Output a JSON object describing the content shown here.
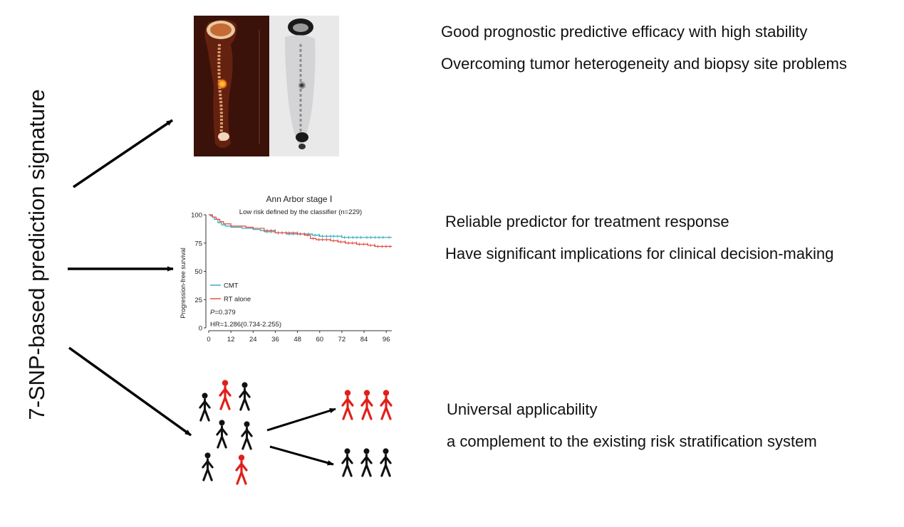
{
  "title": "7-SNP-based prediction signature",
  "benefits": [
    {
      "lines": [
        "Good prognostic predictive efficacy with high stability",
        "Overcoming tumor heterogeneity and biopsy site problems"
      ]
    },
    {
      "lines": [
        "Reliable predictor for treatment response",
        "Have significant implications for clinical decision-making"
      ]
    },
    {
      "lines": [
        "Universal applicability",
        "a complement to the existing risk stratification system"
      ]
    }
  ],
  "pet_image": {
    "icon": "pet-ct-scan"
  },
  "people": {
    "icon": "person-figure",
    "colors": {
      "high": "#e0201b",
      "low": "#111111"
    }
  },
  "chart_data": {
    "type": "line",
    "title": "Ann Arbor stage Ⅰ",
    "subtitle": "Low risk defined by the classifier (n=229)",
    "xlabel": "",
    "ylabel": "Progression-free survival",
    "xlim": [
      0,
      99
    ],
    "ylim": [
      0,
      100
    ],
    "xticks": [
      0,
      12,
      24,
      36,
      48,
      60,
      72,
      84,
      96
    ],
    "yticks": [
      0,
      25,
      50,
      75,
      100
    ],
    "grid": false,
    "legend_position": "bottom-left",
    "series": [
      {
        "name": "CMT",
        "color": "#2aa7b8",
        "x": [
          0,
          1,
          2,
          3,
          5,
          7,
          9,
          12,
          18,
          24,
          28,
          30,
          36,
          42,
          48,
          56,
          60,
          66,
          72,
          84,
          96,
          99
        ],
        "y": [
          100,
          99,
          98,
          96,
          93,
          91,
          90,
          89,
          88,
          87,
          86,
          85,
          84,
          83,
          83,
          82,
          81,
          81,
          80,
          80,
          80,
          80
        ]
      },
      {
        "name": "RT alone",
        "color": "#e0473d",
        "x": [
          0,
          2,
          4,
          6,
          8,
          12,
          20,
          24,
          30,
          36,
          42,
          48,
          52,
          55,
          58,
          60,
          66,
          70,
          74,
          80,
          86,
          90,
          99
        ],
        "y": [
          100,
          98,
          96,
          94,
          92,
          90,
          89,
          88,
          86,
          84,
          84,
          83,
          82,
          79,
          78,
          78,
          77,
          76,
          75,
          74,
          73,
          72,
          72
        ]
      }
    ],
    "annotations": {
      "p_label": "P",
      "p_value": "=0.379",
      "hr": "HR=1.286(0.734-2.255)"
    }
  }
}
